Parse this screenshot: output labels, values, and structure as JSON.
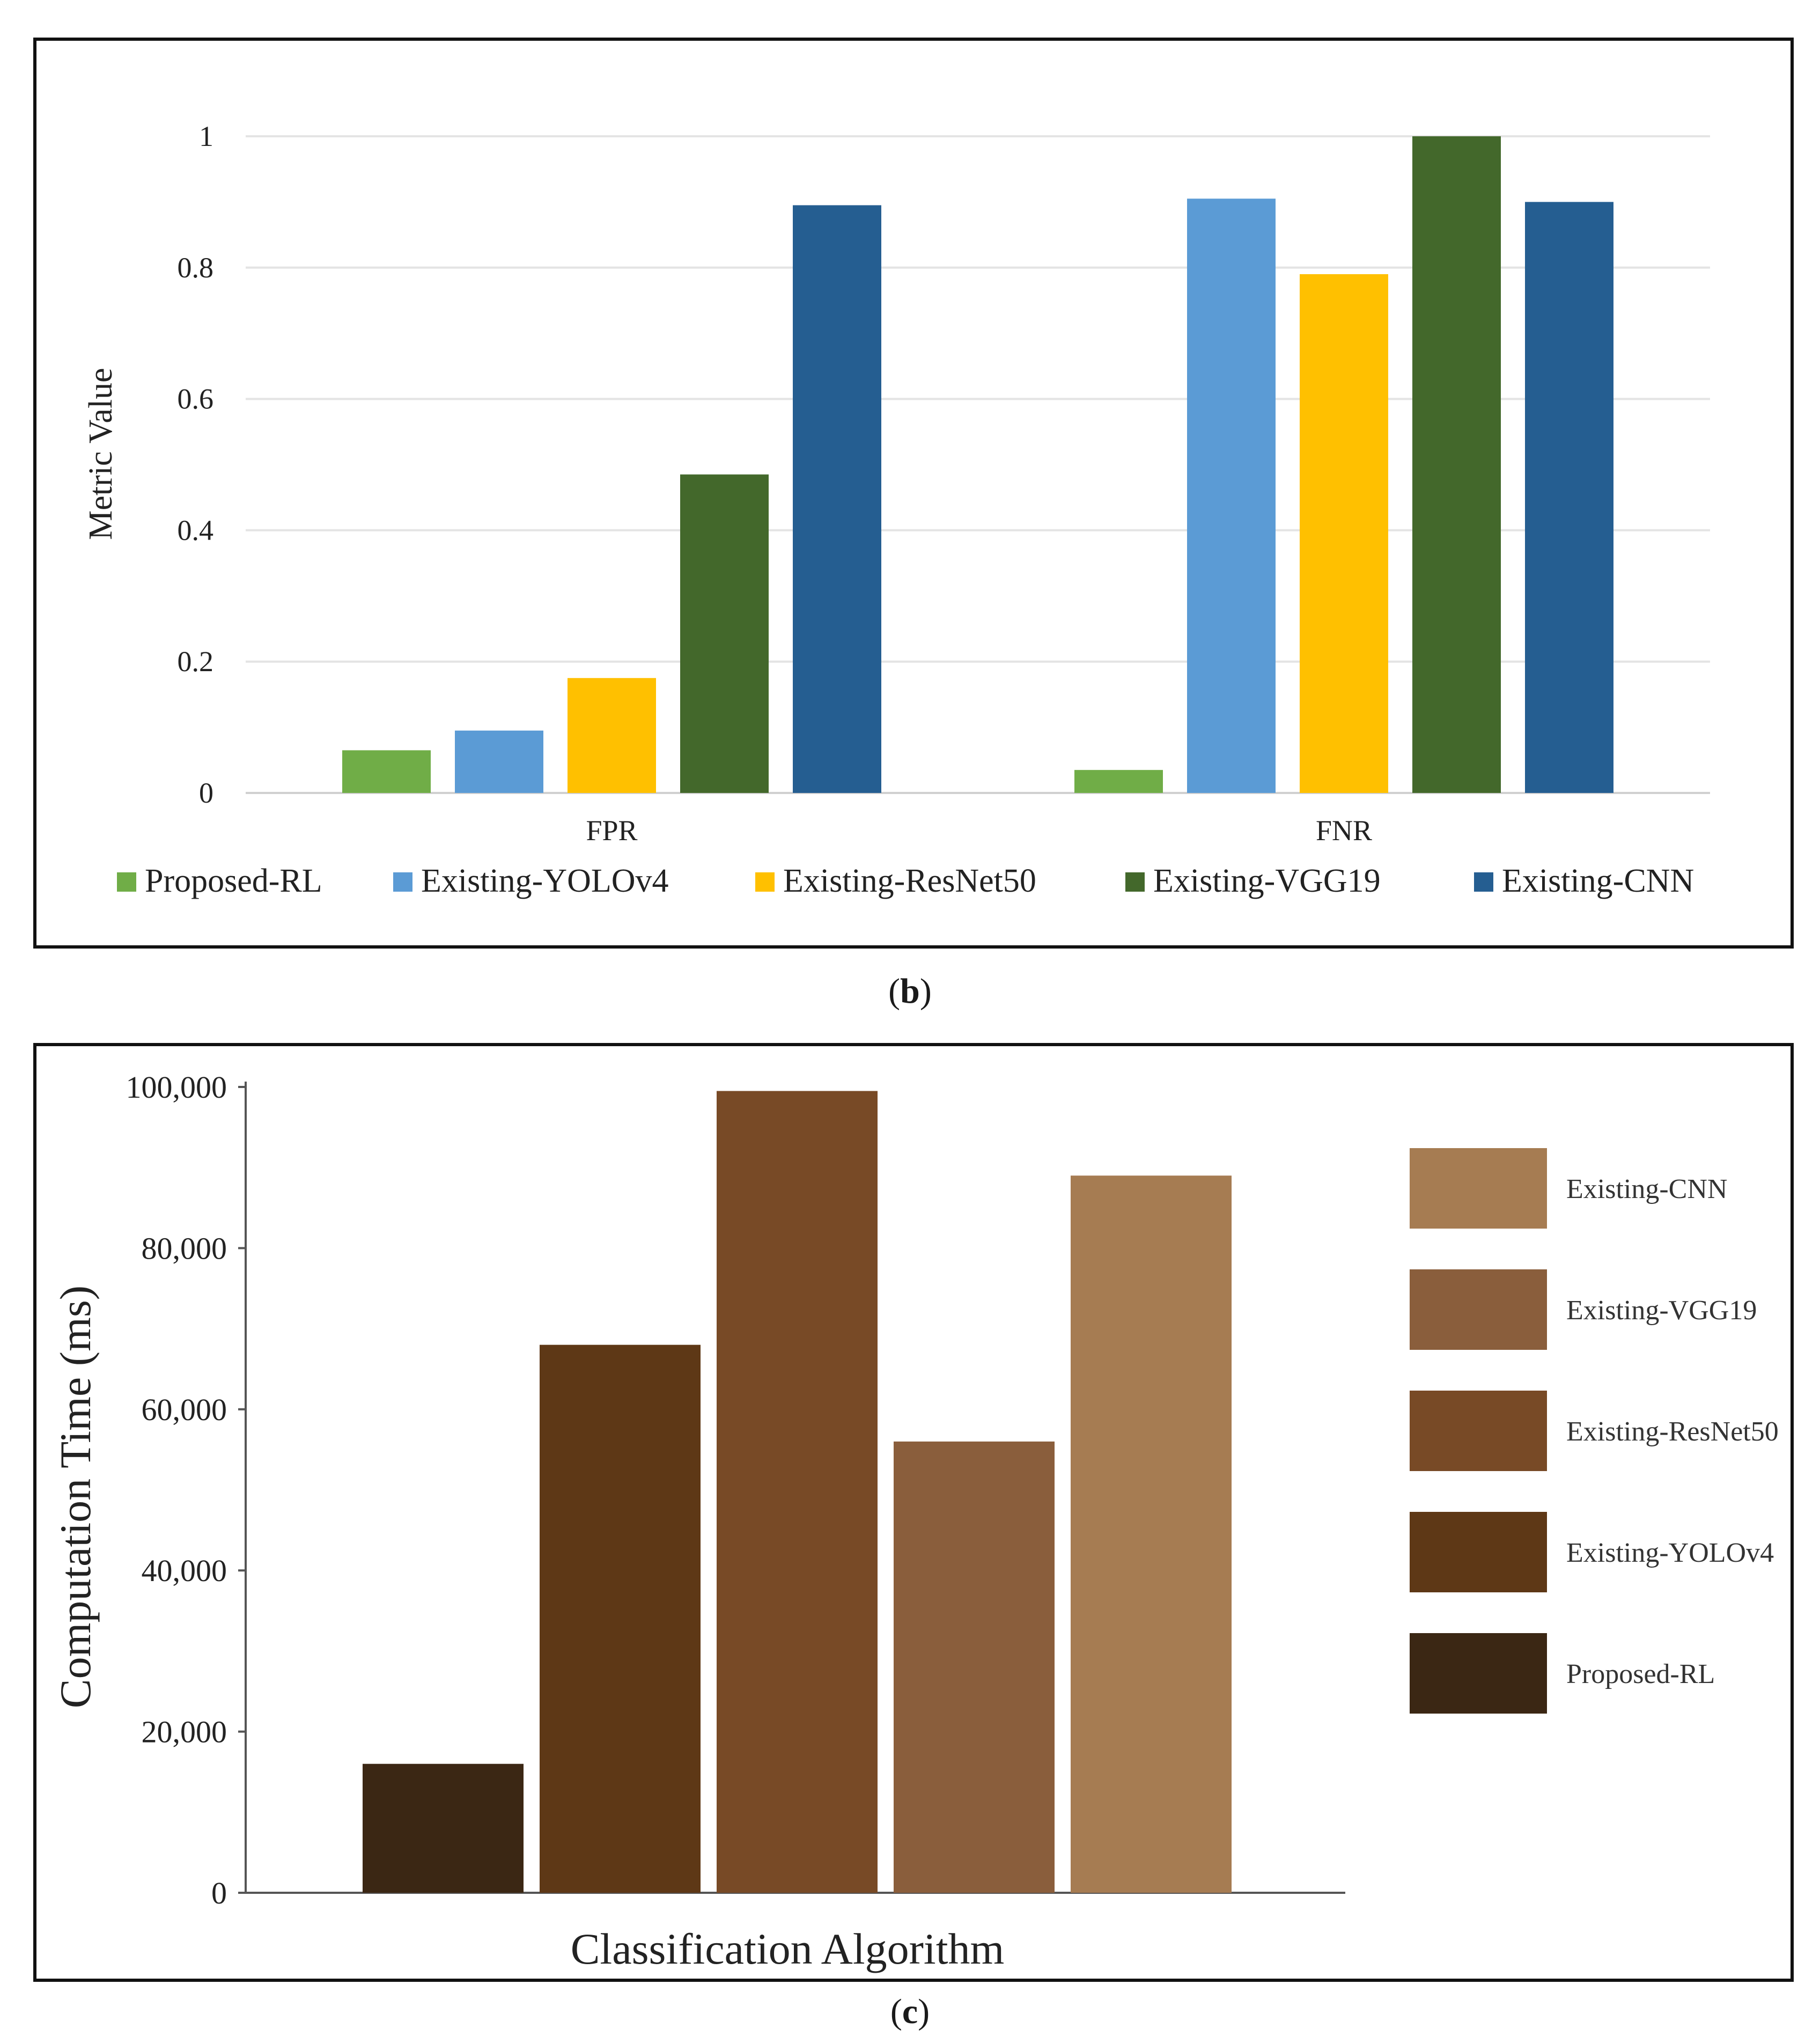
{
  "figure_b": {
    "caption_open": "(",
    "caption_letter": "b",
    "caption_close": ")"
  },
  "figure_c": {
    "caption_open": "(",
    "caption_letter": "c",
    "caption_close": ")"
  },
  "chart_data": [
    {
      "type": "bar",
      "id": "chart-b",
      "title": "",
      "xlabel": "",
      "ylabel": "Metric Value",
      "ylim": [
        0,
        1
      ],
      "yticks": [
        0,
        0.2,
        0.4,
        0.6,
        0.8,
        1
      ],
      "ytick_labels": [
        "0",
        "0.2",
        "0.4",
        "0.6",
        "0.8",
        "1"
      ],
      "grid": true,
      "legend_position": "bottom",
      "categories": [
        "FPR",
        "FNR"
      ],
      "series": [
        {
          "name": "Proposed-RL",
          "color": "#70AD47",
          "values": [
            0.065,
            0.035
          ]
        },
        {
          "name": "Existing-YOLOv4",
          "color": "#5B9BD5",
          "values": [
            0.095,
            0.905
          ]
        },
        {
          "name": "Existing-ResNet50",
          "color": "#FFC000",
          "values": [
            0.175,
            0.79
          ]
        },
        {
          "name": "Existing-VGG19",
          "color": "#43682B",
          "values": [
            0.485,
            1.0
          ]
        },
        {
          "name": "Existing-CNN",
          "color": "#255E91",
          "values": [
            0.895,
            0.9
          ]
        }
      ]
    },
    {
      "type": "bar",
      "id": "chart-c",
      "title": "",
      "xlabel": "Classification Algorithm",
      "ylabel": "Computation Time (ms)",
      "ylim": [
        0,
        100000
      ],
      "yticks": [
        0,
        20000,
        40000,
        60000,
        80000,
        100000
      ],
      "ytick_labels": [
        "0",
        "20,000",
        "40,000",
        "60,000",
        "80,000",
        "100,000"
      ],
      "grid": false,
      "legend_position": "right",
      "categories": [
        "Proposed-RL",
        "Existing-YOLOv4",
        "Existing-ResNet50",
        "Existing-VGG19",
        "Existing-CNN"
      ],
      "values": [
        16000,
        68000,
        99500,
        56000,
        89000
      ],
      "colors": [
        "#3B2714",
        "#5E3816",
        "#784A26",
        "#8A5E3C",
        "#A67C52"
      ],
      "legend_order": [
        "Existing-CNN",
        "Existing-VGG19",
        "Existing-ResNet50",
        "Existing-YOLOv4",
        "Proposed-RL"
      ]
    }
  ]
}
